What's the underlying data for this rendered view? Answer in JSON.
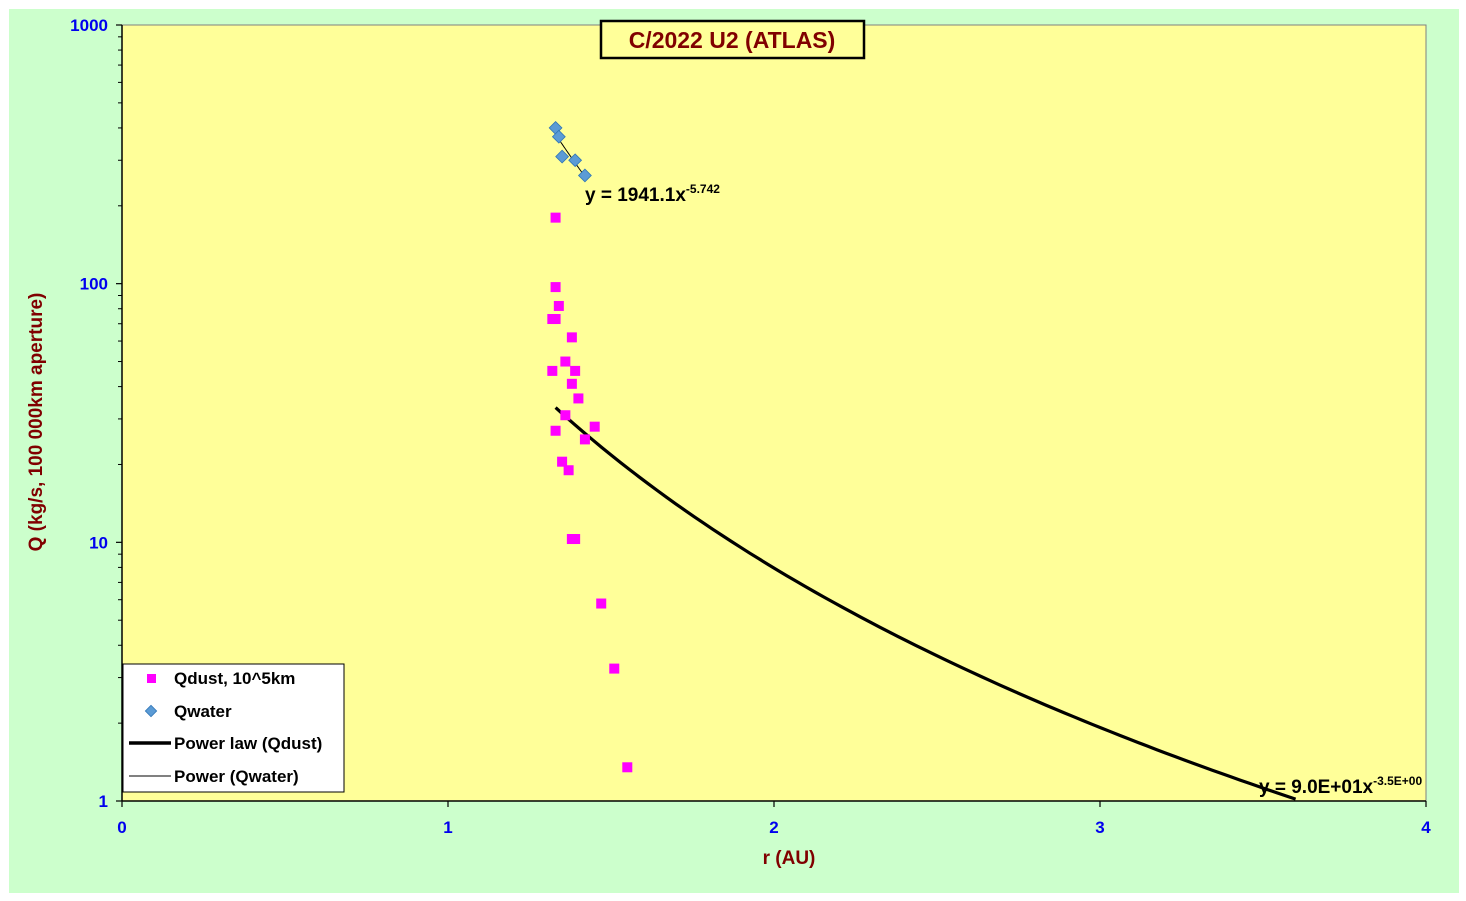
{
  "chart_data": {
    "type": "scatter",
    "title": "C/2022 U2 (ATLAS)",
    "xlabel": "r (AU)",
    "ylabel": "Q (kg/s, 100 000km aperture)",
    "xlim": [
      0,
      4
    ],
    "ylim": [
      1,
      1000
    ],
    "y_scale": "log",
    "x_ticks": [
      "0",
      "1",
      "2",
      "3",
      "4"
    ],
    "y_ticks": [
      "1",
      "10",
      "100",
      "1000"
    ],
    "grid": false,
    "legend_position": "bottom-left",
    "colors": {
      "outer_background": "#ccffcc",
      "plot_background": "#ffff99",
      "qdust": "#ff00ff",
      "qwater": "#5b9bd5",
      "fit": "#000000",
      "title": "#800000",
      "ticks": "#0000ee"
    },
    "series": [
      {
        "name": "Qdust, 10^5km",
        "marker": "square",
        "points": [
          [
            1.33,
            180
          ],
          [
            1.33,
            97
          ],
          [
            1.34,
            82
          ],
          [
            1.32,
            73
          ],
          [
            1.33,
            73
          ],
          [
            1.38,
            62
          ],
          [
            1.36,
            50
          ],
          [
            1.32,
            46
          ],
          [
            1.39,
            46
          ],
          [
            1.38,
            41
          ],
          [
            1.4,
            36
          ],
          [
            1.36,
            31
          ],
          [
            1.45,
            28
          ],
          [
            1.33,
            27
          ],
          [
            1.42,
            25
          ],
          [
            1.35,
            20.5
          ],
          [
            1.37,
            19
          ],
          [
            1.38,
            10.3
          ],
          [
            1.39,
            10.3
          ],
          [
            1.47,
            5.8
          ],
          [
            1.51,
            3.25
          ],
          [
            1.55,
            1.35
          ]
        ]
      },
      {
        "name": "Qwater",
        "marker": "diamond",
        "points": [
          [
            1.33,
            400
          ],
          [
            1.34,
            370
          ],
          [
            1.35,
            310
          ],
          [
            1.39,
            300
          ],
          [
            1.42,
            262
          ]
        ]
      }
    ],
    "fits": [
      {
        "name": "Power law (Qdust)",
        "coefficient": 90,
        "exponent": -3.5,
        "x_range": [
          1.33,
          3.6
        ],
        "equation": "y = 9.0E+01x",
        "equation_exponent": "-3.5E+00"
      },
      {
        "name": "Power (Qwater)",
        "coefficient": 1941.1,
        "exponent": -5.742,
        "x_range": [
          1.33,
          1.42
        ],
        "equation": "y = 1941.1x",
        "equation_exponent": "-5.742"
      }
    ]
  }
}
